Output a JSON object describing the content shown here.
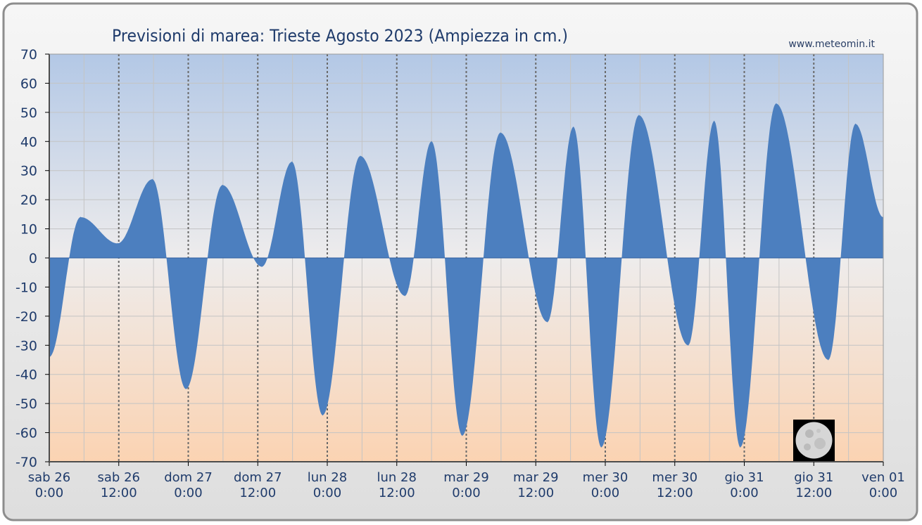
{
  "chart_data": {
    "type": "area",
    "title": "Previsioni di marea: Trieste Agosto 2023 (Ampiezza in cm.)",
    "watermark": "www.meteomin.it",
    "ylim": [
      -70,
      70
    ],
    "yticks": [
      70,
      60,
      50,
      40,
      30,
      20,
      10,
      0,
      -10,
      -20,
      -30,
      -40,
      -50,
      -60,
      -70
    ],
    "xlim_hours": [
      0,
      144
    ],
    "xticks": [
      {
        "day": "sab",
        "date": "26",
        "time": "0:00"
      },
      {
        "day": "sab",
        "date": "26",
        "time": "12:00"
      },
      {
        "day": "dom",
        "date": "27",
        "time": "0:00"
      },
      {
        "day": "dom",
        "date": "27",
        "time": "12:00"
      },
      {
        "day": "lun",
        "date": "28",
        "time": "0:00"
      },
      {
        "day": "lun",
        "date": "28",
        "time": "12:00"
      },
      {
        "day": "mar",
        "date": "29",
        "time": "0:00"
      },
      {
        "day": "mar",
        "date": "29",
        "time": "12:00"
      },
      {
        "day": "mer",
        "date": "30",
        "time": "0:00"
      },
      {
        "day": "mer",
        "date": "30",
        "time": "12:00"
      },
      {
        "day": "gio",
        "date": "31",
        "time": "0:00"
      },
      {
        "day": "gio",
        "date": "31",
        "time": "12:00"
      },
      {
        "day": "ven",
        "date": "01",
        "time": "0:00"
      }
    ],
    "grid": true,
    "moon_phase_icon": "full-moon-icon",
    "fill_color": "#4c7fbf",
    "series": [
      {
        "x": [
          0,
          5.4,
          11.8,
          17.8,
          23.6,
          29.9,
          36.7,
          41.9,
          47.2,
          53.7,
          61.4,
          66.0,
          71.3,
          77.9,
          86.0,
          90.5,
          95.3,
          101.8,
          110.3,
          114.8,
          119.3,
          125.5,
          134.5,
          139.2,
          144
        ],
        "values": [
          -34,
          14,
          5,
          27,
          -45,
          25,
          -3,
          33,
          -54,
          35,
          -13,
          40,
          -61,
          43,
          -22,
          45,
          -65,
          49,
          -30,
          47,
          -65,
          53,
          -35,
          46,
          14
        ]
      }
    ]
  }
}
